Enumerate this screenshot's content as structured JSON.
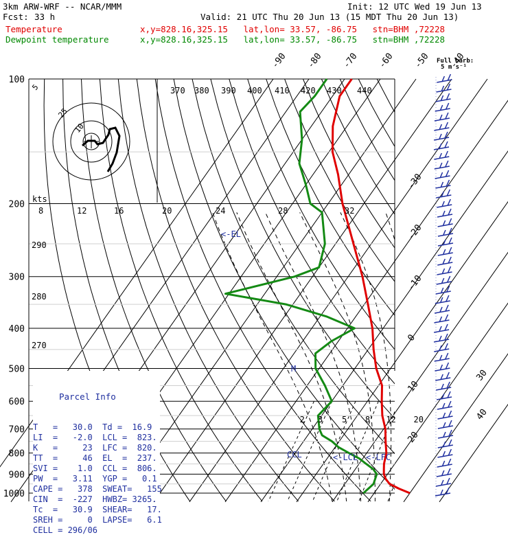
{
  "header": {
    "model": "3km ARW-WRF -- NCAR/MMM",
    "init": "Init: 12 UTC Wed 19 Jun 13",
    "fcst_label": "Fcst:",
    "fcst_value": "33 h",
    "valid": "Valid: 21 UTC Thu 20 Jun 13 (15 MDT Thu 20 Jun 13)",
    "temp_label": "Temperature",
    "dew_label": "Dewpoint temperature",
    "loc_text": "x,y=828.16,325.15   lat,lon= 33.57, -86.75   stn=BHM ,72228"
  },
  "barb_key": {
    "line1": "Full barb:",
    "line2": "5 m s⁻¹"
  },
  "parcel_info": {
    "title": "Parcel Info",
    "lines": [
      "T   =   30.0  Td =  16.9",
      "LI  =   -2.0  LCL =  823.",
      "K   =     23  LFC =  820.",
      "TT  =     46  EL  =  237.",
      "SVI =    1.0  CCL =  806.",
      "PW  =   3.11  YGP =   0.1",
      "CAPE =   378  SWEAT=   155",
      "CIN  =  -227  HWBZ= 3265.",
      "Tc  =   30.9  SHEAR=   17.",
      "SREH =     0  LAPSE=   6.1",
      "CELL = 296/06"
    ]
  },
  "chart_data": {
    "type": "line",
    "title": "",
    "xlabel": "",
    "ylabel": "",
    "y_scale": "log-pressure",
    "pressure_ticks": [
      "100",
      "200",
      "300",
      "400",
      "500",
      "600",
      "700",
      "800",
      "900",
      "1000"
    ],
    "isotherm_labels": [
      "-90",
      "-80",
      "-70",
      "-60",
      "-50",
      "-40",
      "-30",
      "-20",
      "-10",
      "0",
      "10",
      "20",
      "30",
      "40"
    ],
    "isentrope_labels": [
      "370",
      "380",
      "390",
      "400",
      "410",
      "420",
      "430",
      "440",
      "290",
      "280",
      "270"
    ],
    "mixing_ratio_labels": [
      "2",
      "3",
      "5",
      "8",
      "12",
      "20"
    ],
    "hodograph_labels": [
      "kts",
      "8",
      "12",
      "16",
      "20",
      "24",
      "28",
      "32"
    ],
    "hodo_ring_labels": [
      "5",
      "25",
      "10"
    ],
    "annotations": [
      "<-EL",
      "<-LCL",
      "<-LFC",
      "CCL",
      "M"
    ],
    "series": [
      {
        "name": "Temperature",
        "values": [
          [
            1000,
            30
          ],
          [
            975,
            26
          ],
          [
            950,
            22.5
          ],
          [
            925,
            20.5
          ],
          [
            900,
            19
          ],
          [
            875,
            18
          ],
          [
            850,
            17
          ],
          [
            800,
            15.5
          ],
          [
            750,
            13
          ],
          [
            700,
            10.5
          ],
          [
            650,
            7
          ],
          [
            600,
            4
          ],
          [
            550,
            1
          ],
          [
            500,
            -4
          ],
          [
            450,
            -8.5
          ],
          [
            400,
            -13
          ],
          [
            350,
            -19
          ],
          [
            300,
            -26
          ],
          [
            250,
            -35
          ],
          [
            200,
            -46
          ],
          [
            170,
            -53
          ],
          [
            150,
            -59
          ],
          [
            130,
            -64
          ],
          [
            110,
            -68
          ],
          [
            100,
            -68
          ]
        ]
      },
      {
        "name": "Dewpoint temperature",
        "values": [
          [
            1000,
            17
          ],
          [
            975,
            17.5
          ],
          [
            950,
            18
          ],
          [
            925,
            17.5
          ],
          [
            900,
            17
          ],
          [
            875,
            15
          ],
          [
            850,
            12
          ],
          [
            825,
            9
          ],
          [
            800,
            5
          ],
          [
            775,
            1
          ],
          [
            750,
            -2
          ],
          [
            725,
            -6
          ],
          [
            700,
            -8
          ],
          [
            650,
            -11
          ],
          [
            600,
            -10
          ],
          [
            550,
            -15
          ],
          [
            500,
            -21
          ],
          [
            460,
            -24
          ],
          [
            430,
            -22
          ],
          [
            400,
            -18
          ],
          [
            375,
            -28
          ],
          [
            350,
            -42
          ],
          [
            330,
            -61
          ],
          [
            300,
            -45
          ],
          [
            285,
            -40
          ],
          [
            250,
            -43
          ],
          [
            210,
            -50
          ],
          [
            200,
            -55
          ],
          [
            180,
            -60
          ],
          [
            160,
            -66
          ],
          [
            140,
            -70
          ],
          [
            120,
            -76
          ],
          [
            110,
            -75
          ],
          [
            100,
            -75
          ]
        ]
      }
    ],
    "hodograph": {
      "label": "Hodograph"
    }
  }
}
